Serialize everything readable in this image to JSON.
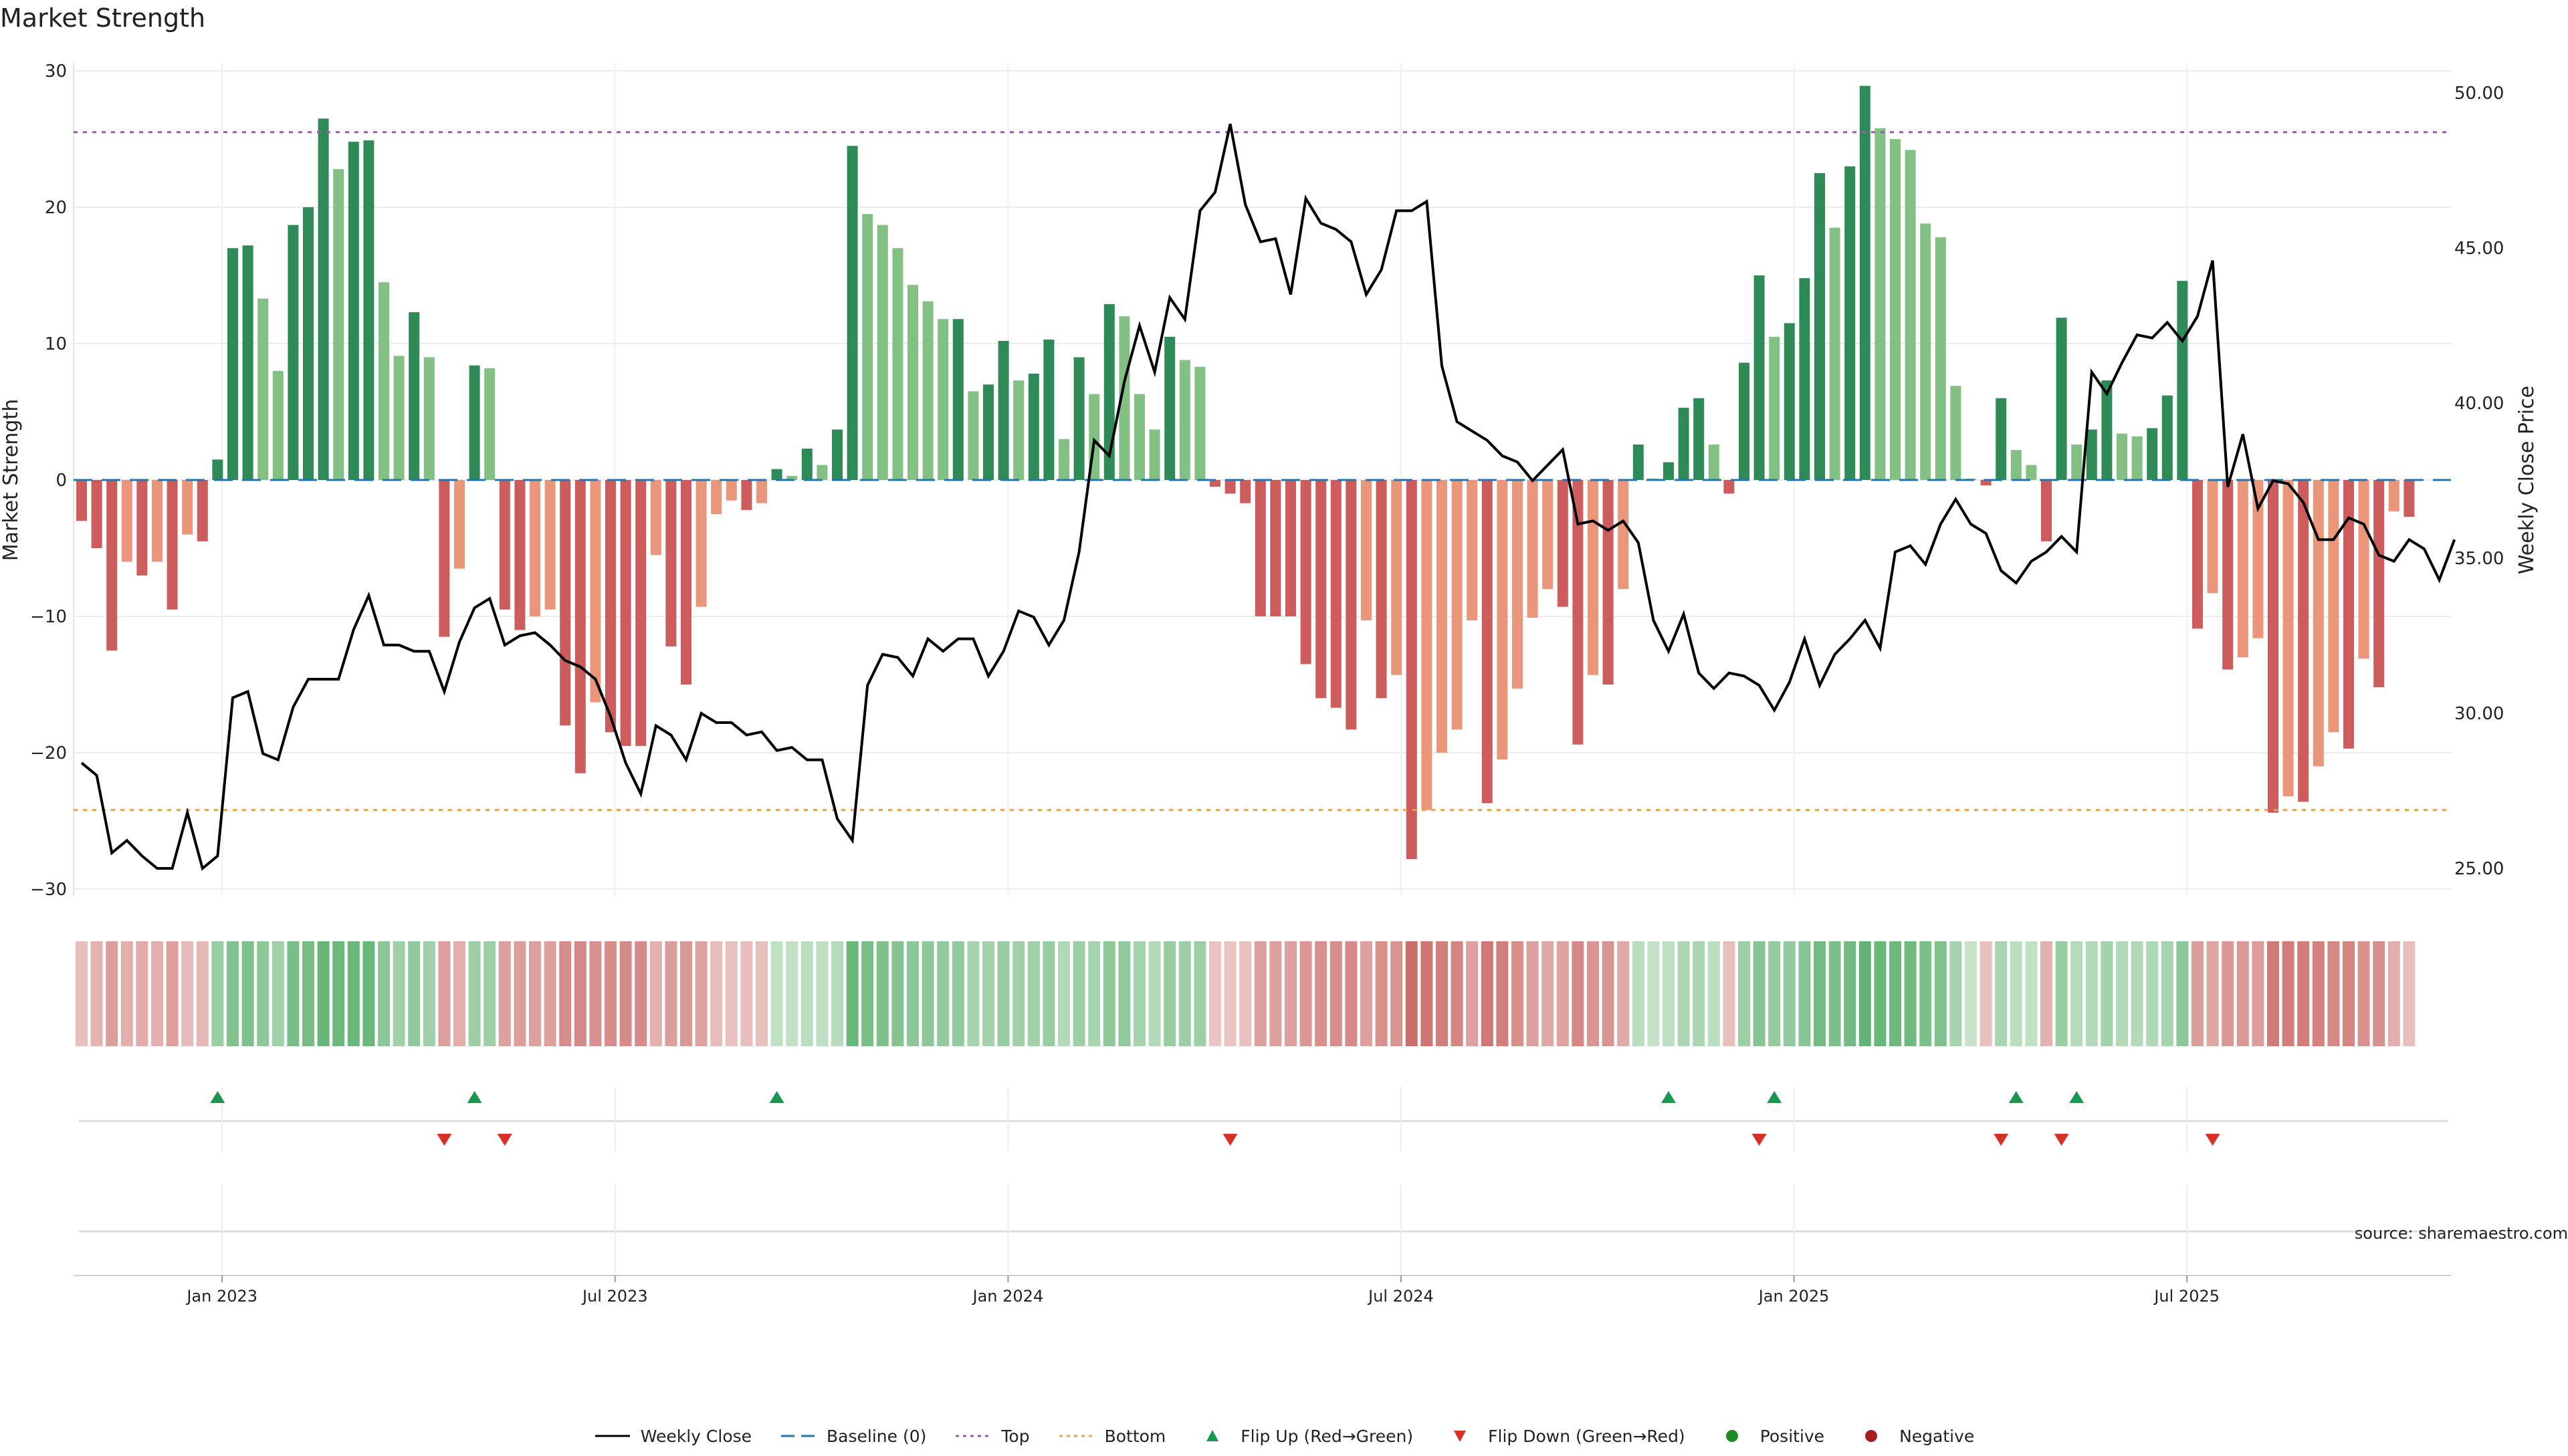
{
  "title": "Market Strength",
  "source_label": "source: sharemaestro.com",
  "colors": {
    "strong_green": "#2e8b57",
    "light_green": "#82c084",
    "strong_red": "#cd5c5c",
    "light_red": "#e9967a",
    "price_line": "#000000",
    "baseline": "#1f77b4",
    "top_line": "#9b59b6",
    "bottom_line": "#f0a050",
    "flip_up": "#1a9850",
    "flip_down": "#d73027",
    "positive": "#1f8a28",
    "negative": "#a81e1e"
  },
  "legend": [
    {
      "key": "weekly_close",
      "label": "Weekly Close"
    },
    {
      "key": "baseline",
      "label": "Baseline (0)"
    },
    {
      "key": "top",
      "label": "Top"
    },
    {
      "key": "bottom",
      "label": "Bottom"
    },
    {
      "key": "flip_up",
      "label": "Flip Up (Red→Green)"
    },
    {
      "key": "flip_down",
      "label": "Flip Down (Green→Red)"
    },
    {
      "key": "positive",
      "label": "Positive"
    },
    {
      "key": "negative",
      "label": "Negative"
    }
  ],
  "chart_data": {
    "type": "bar",
    "title": "Market Strength",
    "ylabel": "Market Strength",
    "ylabel_right": "Weekly Close Price",
    "ylim": [
      -30,
      30
    ],
    "ylim_right": [
      25.0,
      50.0
    ],
    "yticks": [
      30,
      20,
      10,
      0,
      -10,
      -20,
      -30
    ],
    "yticks_labels": [
      "30",
      "20",
      "10",
      "0",
      "−10",
      "−20",
      "−30"
    ],
    "yticks_right": [
      50.0,
      45.0,
      40.0,
      35.0,
      30.0,
      25.0
    ],
    "yticks_right_labels": [
      "50.00",
      "45.00",
      "40.00",
      "35.00",
      "30.00",
      "25.00"
    ],
    "xtick_labels": [
      "Jan 2023",
      "Jul 2023",
      "Jan 2024",
      "Jul 2024",
      "Jan 2025",
      "Jul 2025"
    ],
    "xtick_weeks": [
      9.3,
      35.3,
      61.3,
      87.3,
      113.3,
      139.3
    ],
    "top_level": 25.5,
    "bottom_level": -24.2,
    "baseline": 0,
    "grid": true,
    "legend_position": "bottom",
    "series": [
      {
        "name": "Market Strength",
        "values": [
          -3,
          -5,
          -12.5,
          -6,
          -7,
          -6,
          -9.5,
          -4,
          -4.5,
          1.5,
          17,
          17.2,
          13.3,
          8,
          18.7,
          20,
          26.5,
          22.8,
          24.8,
          24.9,
          14.5,
          9.1,
          12.3,
          9,
          -11.5,
          -6.5,
          8.4,
          8.2,
          -9.5,
          -11,
          -10,
          -9.5,
          -18,
          -21.5,
          -16.3,
          -18.5,
          -19.5,
          -19.5,
          -5.5,
          -12.2,
          -15,
          -9.3,
          -2.5,
          -1.5,
          -2.2,
          -1.7,
          0.8,
          0.3,
          2.3,
          1.1,
          3.7,
          24.5,
          19.5,
          18.7,
          17,
          14.3,
          13.1,
          11.8,
          11.8,
          6.5,
          7,
          10.2,
          7.3,
          7.8,
          10.3,
          3,
          9,
          6.3,
          12.9,
          12,
          6.3,
          3.7,
          10.5,
          8.8,
          8.3,
          -0.5,
          -1,
          -1.7,
          -10,
          -10,
          -10,
          -13.5,
          -16,
          -16.7,
          -18.3,
          -10.3,
          -16,
          -14.3,
          -27.8,
          -24.2,
          -20,
          -18.3,
          -10.3,
          -23.7,
          -20.5,
          -15.3,
          -10.1,
          -8,
          -9.3,
          -19.4,
          -14.3,
          -15,
          -8,
          2.6,
          0.1,
          1.3,
          5.3,
          6,
          2.6,
          -1,
          8.6,
          15,
          10.5,
          11.5,
          14.8,
          22.5,
          18.5,
          23,
          28.9,
          25.8,
          25,
          24.2,
          18.8,
          17.8,
          6.9,
          0.1,
          -0.4,
          6,
          2.2,
          1.1,
          -4.5,
          11.9,
          2.6,
          3.7,
          7.3,
          3.4,
          3.2,
          3.8,
          6.2,
          14.6,
          -10.9,
          -8.3,
          -13.9,
          -13,
          -11.6,
          -24.4,
          -23.2,
          -23.6,
          -21,
          -18.5,
          -19.7,
          -13.1,
          -15.2,
          -2.3,
          -2.7
        ]
      },
      {
        "name": "Weekly Close",
        "values": [
          28.4,
          28,
          25.5,
          25.9,
          25.4,
          25,
          25,
          26.8,
          25,
          25.4,
          30.5,
          30.7,
          28.7,
          28.5,
          30.2,
          31.1,
          31.1,
          31.1,
          32.7,
          33.8,
          32.2,
          32.2,
          32,
          32,
          30.7,
          32.3,
          33.4,
          33.7,
          32.2,
          32.5,
          32.6,
          32.2,
          31.7,
          31.5,
          31.1,
          29.9,
          28.4,
          27.4,
          29.6,
          29.3,
          28.5,
          30,
          29.7,
          29.7,
          29.3,
          29.4,
          28.8,
          28.9,
          28.5,
          28.5,
          26.6,
          25.9,
          30.9,
          31.9,
          31.8,
          31.2,
          32.4,
          32,
          32.4,
          32.4,
          31.2,
          32,
          33.3,
          33.1,
          32.2,
          33,
          35.2,
          38.8,
          38.3,
          40.7,
          42.5,
          41,
          43.4,
          42.7,
          46.2,
          46.8,
          49,
          46.4,
          45.2,
          45.3,
          43.5,
          46.6,
          45.8,
          45.6,
          45.2,
          43.5,
          44.3,
          46.2,
          46.2,
          46.5,
          41.2,
          39.4,
          39.1,
          38.8,
          38.3,
          38.1,
          37.5,
          38,
          38.5,
          36.1,
          36.2,
          35.9,
          36.2,
          35.5,
          33,
          32,
          33.2,
          31.3,
          30.8,
          31.3,
          31.2,
          30.9,
          30.1,
          31,
          32.4,
          30.9,
          31.9,
          32.4,
          33,
          32.1,
          35.2,
          35.4,
          34.8,
          36.1,
          36.9,
          36.1,
          35.8,
          34.6,
          34.2,
          34.9,
          35.2,
          35.7,
          35.2,
          41,
          40.3,
          41.3,
          42.2,
          42.1,
          42.6,
          42,
          42.8,
          44.6,
          37.3,
          39,
          36.6,
          37.5,
          37.4,
          36.8,
          35.6,
          35.6,
          36.3,
          36.1,
          35.1,
          34.9,
          35.6,
          35.3,
          34.3,
          35.6
        ]
      }
    ],
    "flip_up_weeks": [
      9,
      26,
      46,
      105,
      112,
      128,
      132
    ],
    "flip_down_weeks": [
      24,
      28,
      76,
      111,
      127,
      131,
      141
    ],
    "strength_strip": [
      0.16,
      0.26,
      0.44,
      0.3,
      0.32,
      0.3,
      0.42,
      0.2,
      0.22,
      0.48,
      0.64,
      0.66,
      0.56,
      0.45,
      0.7,
      0.72,
      0.82,
      0.78,
      0.8,
      0.8,
      0.58,
      0.45,
      0.55,
      0.45,
      0.42,
      0.3,
      0.46,
      0.46,
      0.42,
      0.44,
      0.42,
      0.42,
      0.58,
      0.62,
      0.55,
      0.58,
      0.6,
      0.6,
      0.28,
      0.44,
      0.5,
      0.4,
      0.18,
      0.14,
      0.16,
      0.15,
      0.22,
      0.22,
      0.26,
      0.24,
      0.3,
      0.8,
      0.7,
      0.66,
      0.62,
      0.58,
      0.56,
      0.52,
      0.52,
      0.4,
      0.42,
      0.5,
      0.44,
      0.44,
      0.5,
      0.32,
      0.46,
      0.4,
      0.56,
      0.55,
      0.4,
      0.32,
      0.5,
      0.46,
      0.46,
      0.12,
      0.12,
      0.14,
      0.42,
      0.42,
      0.42,
      0.5,
      0.56,
      0.58,
      0.6,
      0.42,
      0.56,
      0.52,
      0.84,
      0.78,
      0.7,
      0.66,
      0.42,
      0.76,
      0.7,
      0.56,
      0.42,
      0.36,
      0.4,
      0.62,
      0.52,
      0.52,
      0.34,
      0.26,
      0.2,
      0.24,
      0.36,
      0.38,
      0.26,
      0.16,
      0.46,
      0.6,
      0.52,
      0.54,
      0.6,
      0.74,
      0.68,
      0.74,
      0.84,
      0.8,
      0.78,
      0.76,
      0.68,
      0.66,
      0.4,
      0.18,
      0.14,
      0.38,
      0.26,
      0.22,
      0.28,
      0.5,
      0.3,
      0.32,
      0.42,
      0.32,
      0.32,
      0.34,
      0.4,
      0.58,
      0.44,
      0.38,
      0.5,
      0.48,
      0.46,
      0.74,
      0.72,
      0.72,
      0.68,
      0.62,
      0.64,
      0.54,
      0.56,
      0.3,
      0.16
    ]
  }
}
